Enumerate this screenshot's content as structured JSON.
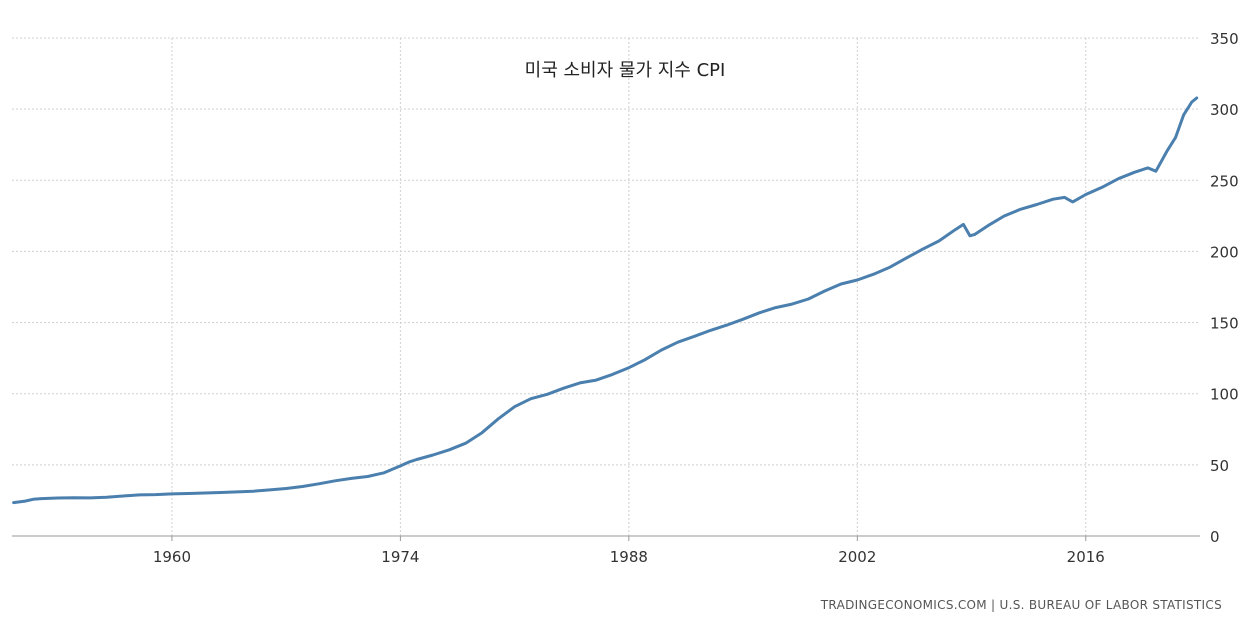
{
  "chart_data": {
    "type": "line",
    "title": "미국 소비자 물가 지수 CPI",
    "xlabel": "",
    "ylabel": "",
    "source": "TRADINGECONOMICS.COM  |  U.S. BUREAU OF LABOR STATISTICS",
    "xlim": [
      1950.2,
      2023.0
    ],
    "ylim": [
      0,
      350
    ],
    "x_ticks": [
      1960,
      1974,
      1988,
      2002,
      2016
    ],
    "y_ticks": [
      0,
      50,
      100,
      150,
      200,
      250,
      300,
      350
    ],
    "grid": true,
    "color": "#4a7fae",
    "series": [
      {
        "x": [
          1950.3,
          1951,
          1951.5,
          1952,
          1953,
          1954,
          1955,
          1956,
          1957,
          1958,
          1959,
          1960,
          1961,
          1962,
          1963,
          1964,
          1965,
          1966,
          1967,
          1968,
          1969,
          1970,
          1971,
          1972,
          1973,
          1974,
          1974.5,
          1975,
          1976,
          1977,
          1978,
          1979,
          1980,
          1981,
          1982,
          1983,
          1984,
          1985,
          1986,
          1987,
          1988,
          1989,
          1990,
          1991,
          1992,
          1993,
          1994,
          1995,
          1996,
          1997,
          1998,
          1999,
          2000,
          2001,
          2002,
          2003,
          2004,
          2005,
          2006,
          2007,
          2008,
          2008.5,
          2008.9,
          2009.2,
          2010,
          2011,
          2012,
          2013,
          2014,
          2014.7,
          2015.2,
          2016,
          2017,
          2018,
          2019,
          2019.8,
          2020.3,
          2021,
          2021.5,
          2022,
          2022.5,
          2022.8
        ],
        "values": [
          23.5,
          24.5,
          25.8,
          26.3,
          26.7,
          26.9,
          26.8,
          27.2,
          28.1,
          28.9,
          29.1,
          29.6,
          29.9,
          30.2,
          30.6,
          31.0,
          31.5,
          32.4,
          33.4,
          34.8,
          36.7,
          38.8,
          40.5,
          41.8,
          44.4,
          49.3,
          51.9,
          53.8,
          56.9,
          60.6,
          65.2,
          72.6,
          82.4,
          90.9,
          96.5,
          99.6,
          103.9,
          107.6,
          109.6,
          113.6,
          118.3,
          124.0,
          130.7,
          136.2,
          140.3,
          144.5,
          148.2,
          152.4,
          156.9,
          160.5,
          163.0,
          166.6,
          172.2,
          177.1,
          179.9,
          184.0,
          188.9,
          195.3,
          201.6,
          207.3,
          215.3,
          219.0,
          211.0,
          212.0,
          218.1,
          224.9,
          229.6,
          233.0,
          236.7,
          238.0,
          234.8,
          240.0,
          245.1,
          251.1,
          255.7,
          258.7,
          256.4,
          271.0,
          280.0,
          296.0,
          305.0,
          307.8
        ]
      }
    ]
  }
}
